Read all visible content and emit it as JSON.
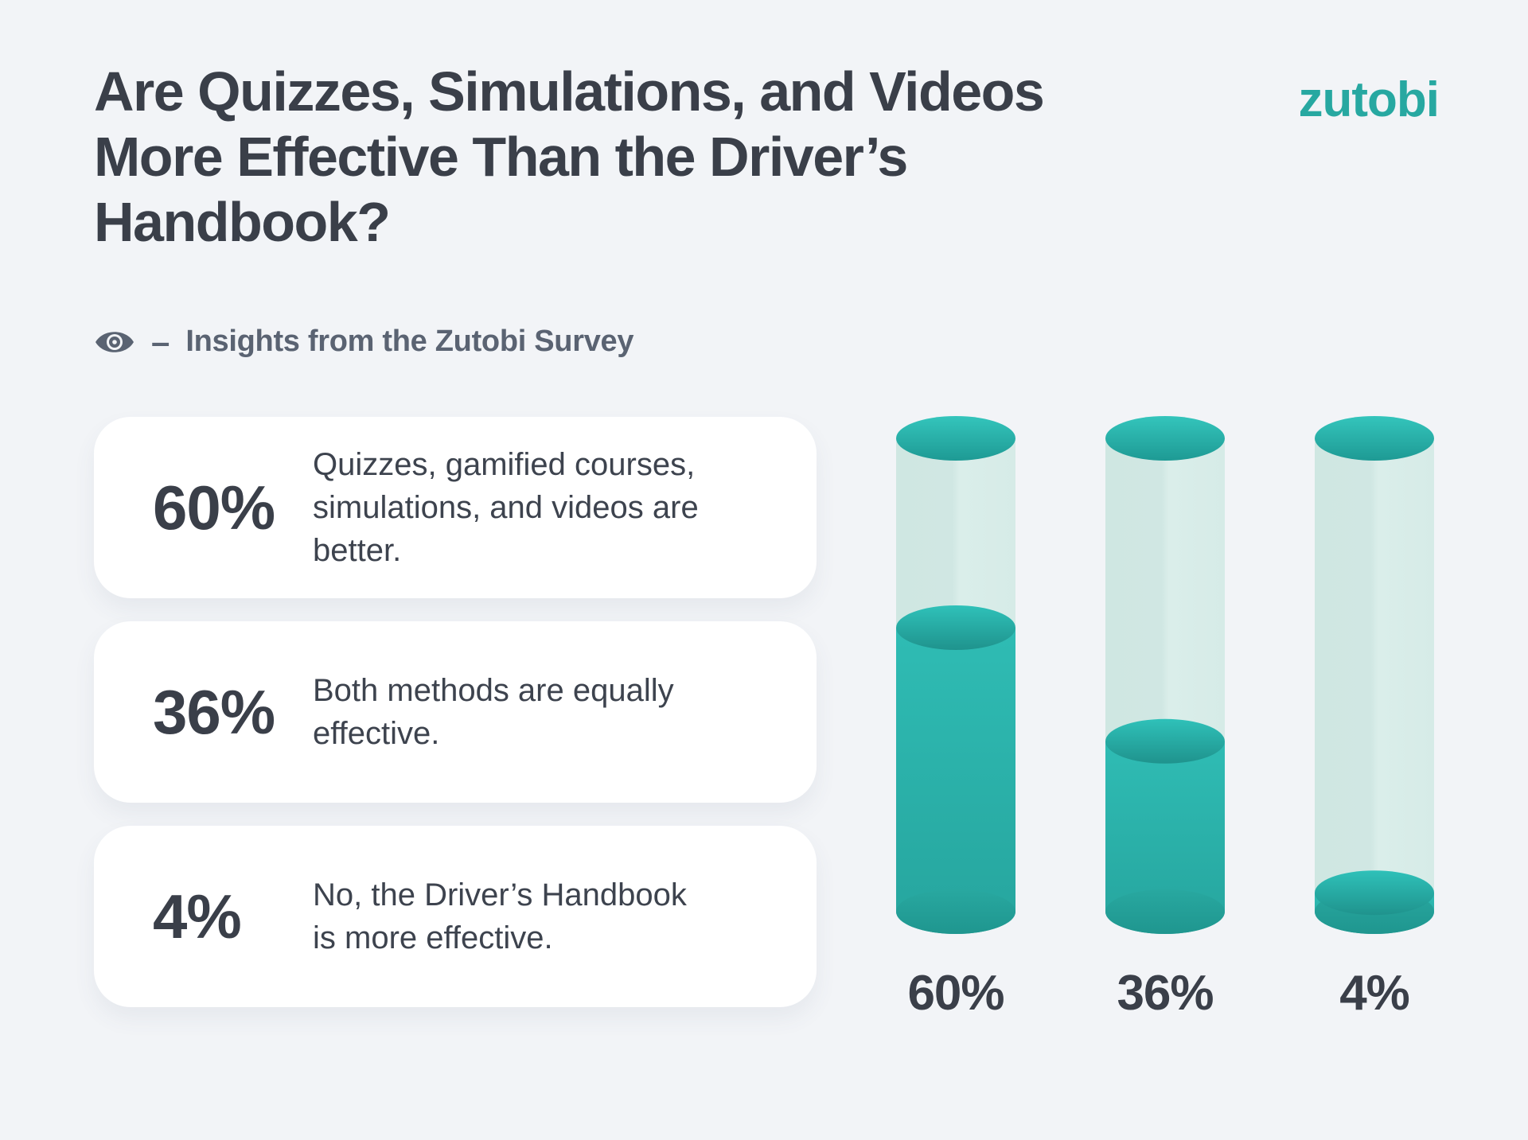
{
  "theme": {
    "bg": "#f2f4f7",
    "ink": "#3a3f49",
    "slate": "#5a6372",
    "brand": "#27a8a1",
    "card": "#ffffff",
    "desc": "#3d434e"
  },
  "header": {
    "title": "Are Quizzes, Simulations, and Videos More Effective Than the Driver’s Handbook?",
    "title_lines": [
      "Are Quizzes, Simulations, and Videos",
      "More Effective Than the Driver’s",
      "Handbook?"
    ],
    "logo": "zutobi",
    "eye_icon": "eye-icon",
    "subtitle_separator": "–",
    "subtitle": "Insights from the Zutobi Survey"
  },
  "stats": [
    {
      "percent": "60%",
      "description": "Quizzes, gamified courses, simulations, and videos are better.",
      "description_lines": [
        "Quizzes, gamified courses,",
        "simulations, and videos are",
        "better."
      ]
    },
    {
      "percent": "36%",
      "description": "Both methods are equally effective.",
      "description_lines": [
        "Both methods are equally",
        "effective."
      ]
    },
    {
      "percent": "4%",
      "description": "No, the Driver’s Handbook is more effective.",
      "description_lines": [
        "No, the Driver’s Handbook",
        "is more effective."
      ]
    }
  ],
  "chart_data": {
    "type": "bar",
    "subtype": "cylinder-fill",
    "categories": [
      "Quizzes, gamified courses, simulations, and videos are better",
      "Both methods are equally effective",
      "No, the Driver’s Handbook is more effective"
    ],
    "values": [
      60,
      36,
      4
    ],
    "labels": [
      "60%",
      "36%",
      "4%"
    ],
    "ylim": [
      0,
      100
    ],
    "legend": "none",
    "grid": false,
    "gradients": {
      "cap": [
        "#34c5bc",
        "#1e9a94"
      ],
      "meniscus": [
        "#2fc1b9",
        "#1f938d"
      ],
      "fill": [
        "#2fbcb4",
        "#26a59e"
      ],
      "fill_bottom": [
        "#28a8a0",
        "#1f968f"
      ],
      "tube": [
        [
          "0",
          "#cfe7e2"
        ],
        [
          "0.47",
          "#d0e7e3"
        ],
        [
          "0.53",
          "#daeeea"
        ],
        [
          "1",
          "#d6ebe7"
        ]
      ]
    }
  }
}
